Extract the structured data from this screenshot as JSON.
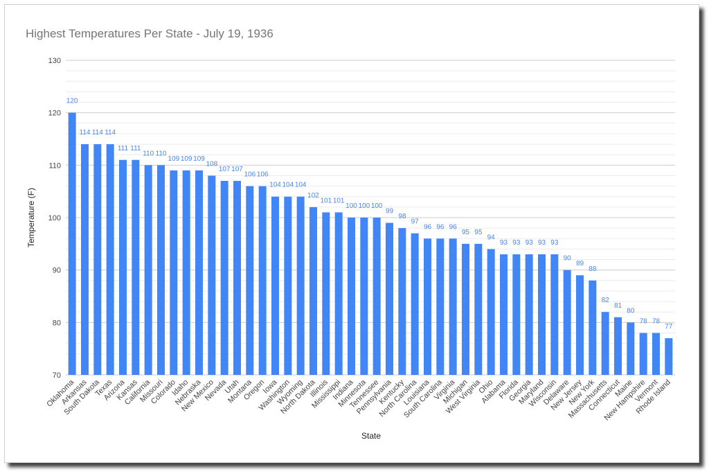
{
  "chart_data": {
    "type": "bar",
    "title": "Highest Temperatures Per State - July 19, 1936",
    "xlabel": "State",
    "ylabel": "Temperature (F)",
    "ylim": [
      70,
      130
    ],
    "yticks": [
      70,
      80,
      90,
      100,
      110,
      120,
      130
    ],
    "grid": true,
    "legend": "none",
    "bar_color": "#4285f4",
    "label_color": "#4a86e8",
    "categories": [
      "Oklahoma",
      "Arkansas",
      "South Dakota",
      "Texas",
      "Arizona",
      "Kansas",
      "California",
      "Missouri",
      "Colorado",
      "Idaho",
      "Nebraska",
      "New Mexico",
      "Nevada",
      "Utah",
      "Montana",
      "Oregon",
      "Iowa",
      "Washington",
      "Wyoming",
      "North Dakota",
      "Illinois",
      "Mississippi",
      "Indiana",
      "Minnesota",
      "Tennessee",
      "Pennsylvania",
      "Kentucky",
      "North Carolina",
      "Louisiana",
      "South Carolina",
      "Virginia",
      "Michigan",
      "West Virginia",
      "Ohio",
      "Alabama",
      "Florida",
      "Georgia",
      "Maryland",
      "Wisconsin",
      "Delaware",
      "New Jersey",
      "New York",
      "Massachusetts",
      "Connecticut",
      "Maine",
      "New Hampshire",
      "Vermont",
      "Rhode Island"
    ],
    "values": [
      120,
      114,
      114,
      114,
      111,
      111,
      110,
      110,
      109,
      109,
      109,
      108,
      107,
      107,
      106,
      106,
      104,
      104,
      104,
      102,
      101,
      101,
      100,
      100,
      100,
      99,
      98,
      97,
      96,
      96,
      96,
      95,
      95,
      94,
      93,
      93,
      93,
      93,
      93,
      90,
      89,
      88,
      82,
      81,
      80,
      78,
      78,
      77
    ]
  }
}
